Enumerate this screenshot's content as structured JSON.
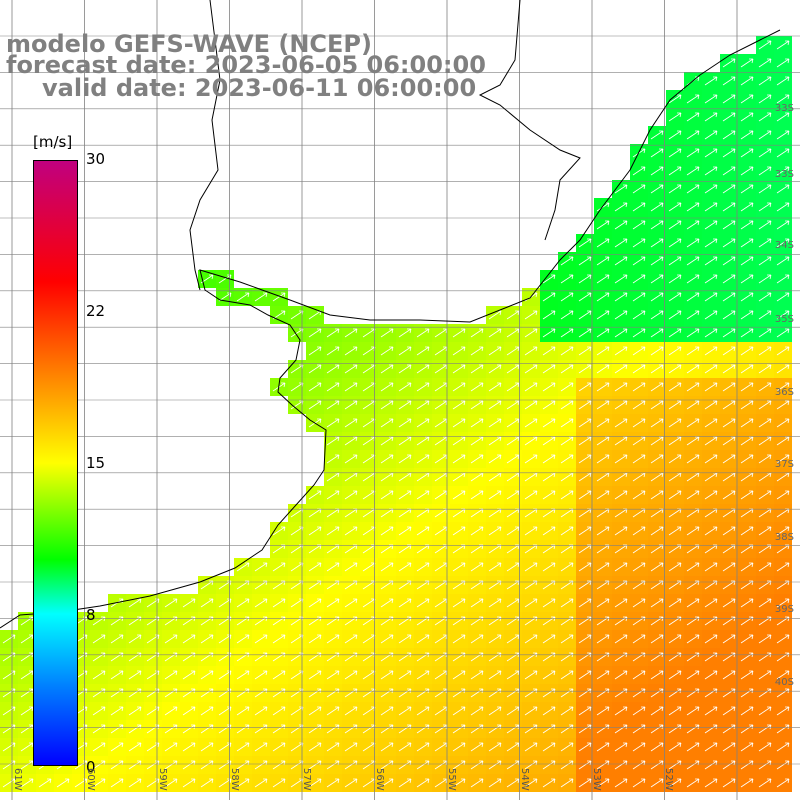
{
  "title": {
    "line1": "modelo GEFS-WAVE (NCEP)",
    "line2": "forecast date: 2023-06-05 06:00:00",
    "line3": "valid date: 2023-06-11 06:00:00"
  },
  "colorbar": {
    "unit": "[m/s]",
    "ticks": [
      "30",
      "22",
      "15",
      "8",
      "0"
    ],
    "colors": [
      "#c0007f",
      "#ff0000",
      "#ff7f00",
      "#ffff00",
      "#00ff00",
      "#00ffff",
      "#007fff",
      "#0000ff"
    ]
  },
  "map": {
    "lat_labels": [
      "33S",
      "34S",
      "35S",
      "36S",
      "37S",
      "38S",
      "39S",
      "40S"
    ],
    "lon_labels": [
      "61W",
      "60W",
      "59W",
      "58W",
      "57W",
      "56W",
      "55W",
      "54W",
      "53W",
      "52W"
    ],
    "land_color": "#ffffff",
    "grid_color": "#808080",
    "coast_color": "#000000",
    "arrow_color": "#ffffff"
  }
}
